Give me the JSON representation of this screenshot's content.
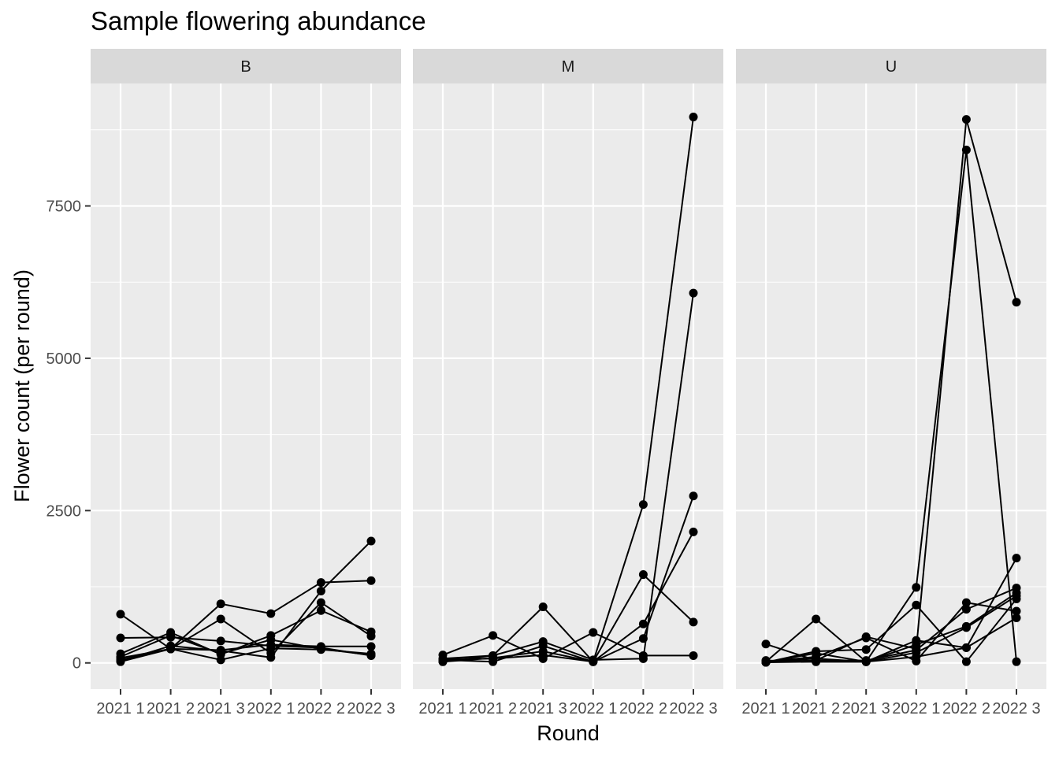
{
  "chart_data": {
    "type": "line",
    "title": "Sample flowering abundance",
    "xlabel": "Round",
    "ylabel": "Flower count (per round)",
    "categories": [
      "2021 1",
      "2021 2",
      "2021 3",
      "2022 1",
      "2022 2",
      "2022 3"
    ],
    "y_ticks": [
      0,
      2500,
      5000,
      7500
    ],
    "y_tick_labels": [
      "0",
      "2500",
      "5000",
      "7500"
    ],
    "ylim": [
      -430,
      9510
    ],
    "grid": true,
    "point_markers": true,
    "line_color": "#000000",
    "facets": [
      {
        "label": "B",
        "series": [
          {
            "values": [
              800,
              230,
              970,
              810,
              1320,
              1350
            ]
          },
          {
            "values": [
              410,
              420,
              360,
              280,
              250,
              120
            ]
          },
          {
            "values": [
              150,
              500,
              140,
              450,
              860,
              510
            ]
          },
          {
            "values": [
              80,
              230,
              720,
              160,
              990,
              440
            ]
          },
          {
            "values": [
              30,
              280,
              200,
              90,
              1180,
              2000
            ]
          },
          {
            "values": [
              50,
              230,
              50,
              240,
              220,
              150
            ]
          },
          {
            "values": [
              20,
              230,
              210,
              300,
              270,
              270
            ]
          },
          {
            "values": [
              100,
              450,
              150,
              380,
              230,
              130
            ]
          }
        ]
      },
      {
        "label": "M",
        "series": [
          {
            "values": [
              130,
              450,
              70,
              500,
              120,
              120
            ]
          },
          {
            "values": [
              70,
              120,
              920,
              20,
              2600,
              8960
            ]
          },
          {
            "values": [
              20,
              120,
              350,
              50,
              70,
              6070
            ]
          },
          {
            "values": [
              50,
              20,
              280,
              20,
              1450,
              670
            ]
          },
          {
            "values": [
              20,
              80,
              190,
              20,
              400,
              2740
            ]
          },
          {
            "values": [
              60,
              70,
              130,
              20,
              640,
              2150
            ]
          }
        ]
      },
      {
        "label": "U",
        "series": [
          {
            "values": [
              310,
              40,
              430,
              230,
              8920,
              5920
            ]
          },
          {
            "values": [
              20,
              720,
              20,
              1240,
              8420,
              20
            ]
          },
          {
            "values": [
              10,
              190,
              220,
              950,
              20,
              1050
            ]
          },
          {
            "values": [
              40,
              20,
              20,
              370,
              250,
              1720
            ]
          },
          {
            "values": [
              20,
              100,
              410,
              30,
              990,
              850
            ]
          },
          {
            "values": [
              10,
              160,
              20,
              300,
              600,
              1150
            ]
          },
          {
            "values": [
              20,
              40,
              40,
              210,
              880,
              1230
            ]
          },
          {
            "values": [
              10,
              20,
              20,
              100,
              250,
              740
            ]
          },
          {
            "values": [
              20,
              70,
              20,
              170,
              580,
              1100
            ]
          }
        ]
      }
    ]
  }
}
